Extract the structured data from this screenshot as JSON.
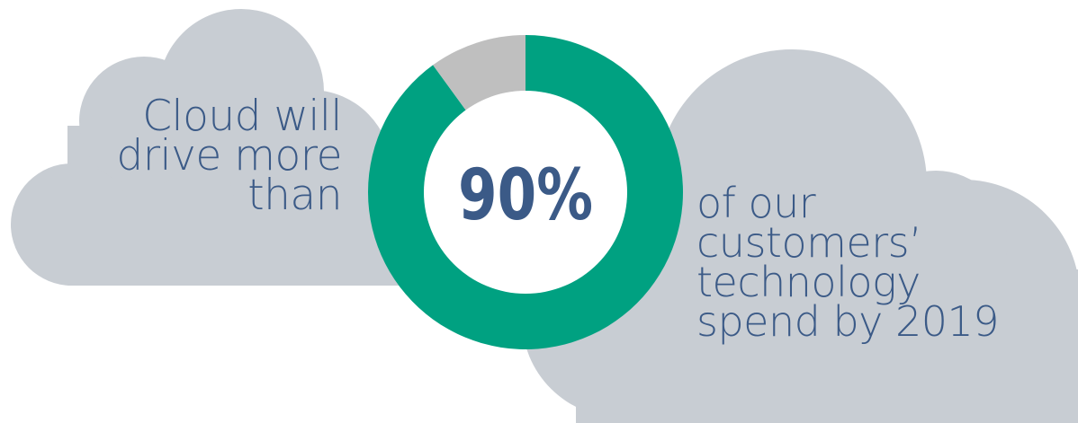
{
  "chart_data": {
    "type": "pie",
    "style": "donut",
    "center_label": "90%",
    "slices": [
      {
        "value": 90,
        "color": "#00a181"
      },
      {
        "value": 10,
        "color": "#bfbfbf"
      }
    ]
  },
  "caption_left": {
    "lines": [
      "Cloud will",
      "drive more",
      "than"
    ]
  },
  "caption_right": {
    "lines": [
      "of our",
      "customers’",
      "technology",
      "spend by 2019"
    ]
  },
  "colors": {
    "cloud": "#c8cdd3",
    "text": "#3b5a87",
    "accent": "#00a181",
    "remainder": "#bfbfbf",
    "center_fill": "#ffffff"
  }
}
